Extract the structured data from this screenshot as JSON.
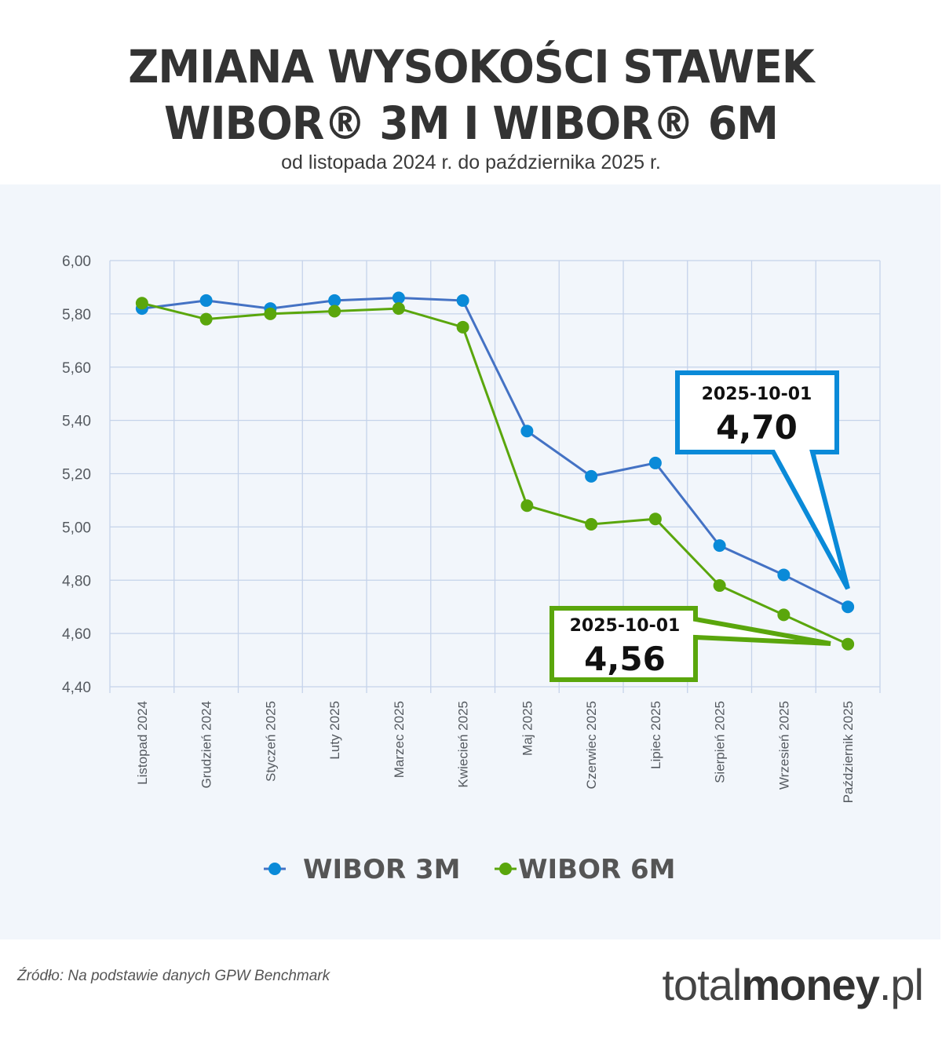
{
  "header": {
    "title_line1": "ZMIANA WYSOKOŚCI STAWEK",
    "title_line2": "WIBOR® 3M I WIBOR® 6M",
    "subtitle": "od listopada 2024 r. do października 2025 r."
  },
  "chart_data": {
    "type": "line",
    "title": "ZMIANA WYSOKOŚCI STAWEK WIBOR® 3M I WIBOR® 6M",
    "subtitle": "od listopada 2024 r. do października 2025 r.",
    "xlabel": "",
    "ylabel": "",
    "ylim": [
      4.4,
      6.0
    ],
    "yticks": [
      "6,00",
      "5,80",
      "5,60",
      "5,40",
      "5,20",
      "5,00",
      "4,80",
      "4,60",
      "4,40"
    ],
    "grid": true,
    "legend_position": "bottom",
    "categories": [
      "Listopad 2024",
      "Grudzień 2024",
      "Styczeń 2025",
      "Luty 2025",
      "Marzec 2025",
      "Kwiecień 2025",
      "Maj 2025",
      "Czerwiec 2025",
      "Lipiec 2025",
      "Sierpień 2025",
      "Wrzesień 2025",
      "Październik 2025"
    ],
    "series": [
      {
        "name": "WIBOR 3M",
        "color": "#0a8ad8",
        "line_color": "#4472c4",
        "values": [
          5.82,
          5.85,
          5.82,
          5.85,
          5.86,
          5.85,
          5.36,
          5.19,
          5.24,
          4.93,
          4.82,
          4.7
        ]
      },
      {
        "name": "WIBOR 6M",
        "color": "#5aa60c",
        "line_color": "#5aa60c",
        "values": [
          5.84,
          5.78,
          5.8,
          5.81,
          5.82,
          5.75,
          5.08,
          5.01,
          5.03,
          4.78,
          4.67,
          4.56
        ]
      }
    ],
    "annotations": [
      {
        "series": "WIBOR 3M",
        "date": "2025-10-01",
        "value": "4,70",
        "border_color": "#0a8ad8"
      },
      {
        "series": "WIBOR 6M",
        "date": "2025-10-01",
        "value": "4,56",
        "border_color": "#5aa60c"
      }
    ]
  },
  "legend": [
    {
      "label": "WIBOR 3M",
      "icon": "blue-dot-line-icon"
    },
    {
      "label": "WIBOR 6M",
      "icon": "green-dot-line-icon"
    }
  ],
  "footer": {
    "source": "Źródło: Na podstawie danych GPW Benchmark",
    "logo_light": "total",
    "logo_bold": "money",
    "logo_suffix": ".pl"
  }
}
